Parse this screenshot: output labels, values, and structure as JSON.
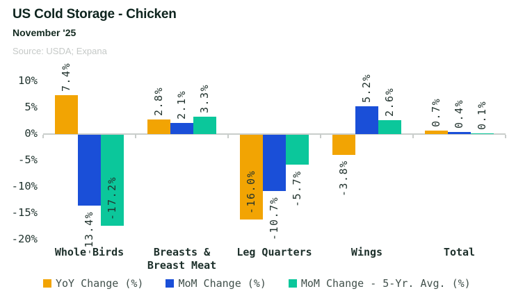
{
  "chart_data": {
    "type": "bar",
    "title": "US Cold Storage - Chicken",
    "subtitle": "November '25",
    "source": "Source: USDA; Expana",
    "categories": [
      "Whole Birds",
      "Breasts &\nBreast Meat",
      "Leg Quarters",
      "Wings",
      "Total"
    ],
    "series": [
      {
        "name": "YoY Change (%)",
        "color": "#F2A403",
        "values": [
          7.4,
          2.8,
          -16.0,
          -3.8,
          0.7
        ],
        "label_inside": [
          false,
          false,
          true,
          false,
          false
        ]
      },
      {
        "name": "MoM Change (%)",
        "color": "#1A4FD8",
        "values": [
          -13.4,
          2.1,
          -10.7,
          5.2,
          0.4
        ],
        "label_inside": [
          false,
          false,
          false,
          false,
          false
        ]
      },
      {
        "name": "MoM Change - 5-Yr. Avg. (%)",
        "color": "#0BC79B",
        "values": [
          -17.2,
          3.3,
          -5.7,
          2.6,
          0.1
        ],
        "label_inside": [
          true,
          false,
          false,
          false,
          false
        ]
      }
    ],
    "yticks": [
      10,
      5,
      0,
      -5,
      -10,
      -15,
      -20
    ],
    "ytick_suffix": "%",
    "ylim": [
      -20.5,
      12.5
    ],
    "value_label_format": "{value}%",
    "grid": false,
    "legend_position": "bottom",
    "axis_color": "#C9CDCB",
    "text_color": "#1E312C"
  }
}
